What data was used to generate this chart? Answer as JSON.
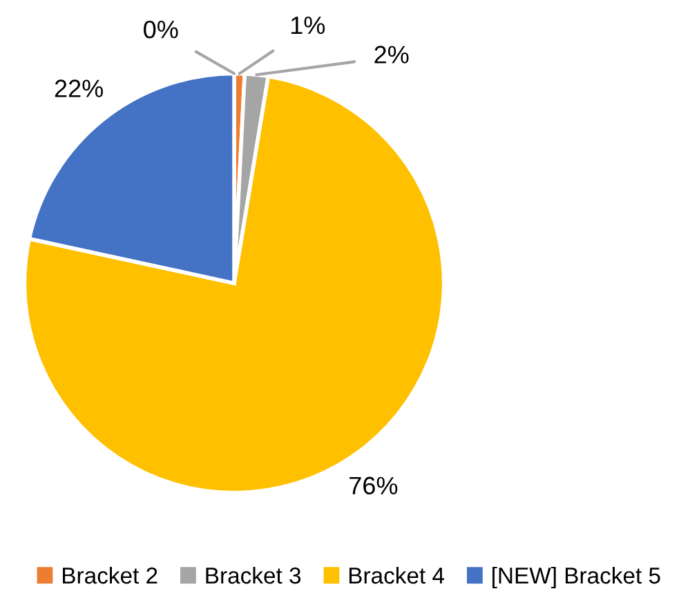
{
  "chart_data": {
    "type": "pie",
    "categories": [
      null,
      "Bracket 2",
      "Bracket 3",
      "Bracket 4",
      "[NEW] Bracket 5"
    ],
    "values": [
      0,
      0.8,
      1.8,
      75.8,
      21.6
    ],
    "colors": [
      "#5b9bd5",
      "#ed7d31",
      "#a5a5a5",
      "#ffc000",
      "#4472c4"
    ],
    "value_labels": [
      "0%",
      "1%",
      "2%",
      "76%",
      "22%"
    ],
    "legend": "bottom"
  }
}
